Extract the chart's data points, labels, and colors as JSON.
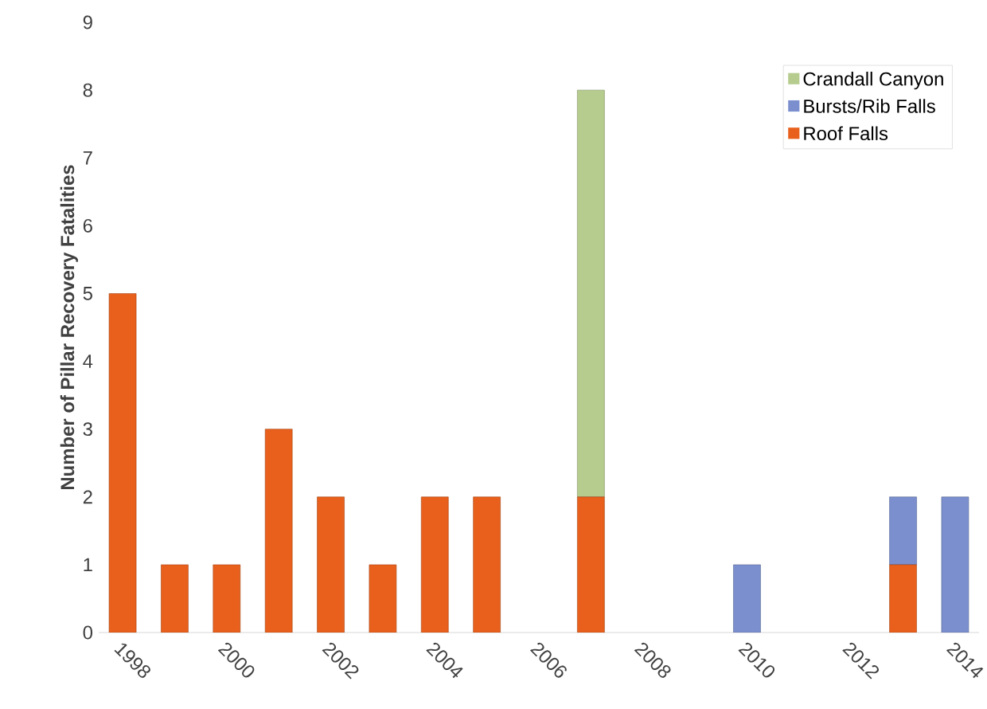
{
  "chart_data": {
    "type": "bar",
    "ylabel": "Number of Pillar Recovery Fatalities",
    "categories": [
      "1998",
      null,
      "2000",
      null,
      "2002",
      null,
      "2004",
      null,
      "2006",
      null,
      "2008",
      null,
      "2010",
      null,
      "2012",
      null,
      "2014"
    ],
    "stacked": true,
    "series": [
      {
        "name": "Roof Falls",
        "color": "#e8601c",
        "values": [
          5,
          1,
          1,
          3,
          2,
          1,
          2,
          2,
          0,
          2,
          0,
          0,
          0,
          0,
          0,
          1,
          0
        ]
      },
      {
        "name": "Bursts/Rib Falls",
        "color": "#7b8fcf",
        "values": [
          0,
          0,
          0,
          0,
          0,
          0,
          0,
          0,
          0,
          0,
          0,
          0,
          1,
          0,
          0,
          1,
          2
        ]
      },
      {
        "name": "Crandall Canyon",
        "color": "#b5cc8e",
        "values": [
          0,
          0,
          0,
          0,
          0,
          0,
          0,
          0,
          0,
          6,
          0,
          0,
          0,
          0,
          0,
          0,
          0
        ]
      }
    ],
    "ylim": [
      0,
      9
    ],
    "yticks": [
      0,
      1,
      2,
      3,
      4,
      5,
      6,
      7,
      8,
      9
    ],
    "legend": "top right"
  }
}
